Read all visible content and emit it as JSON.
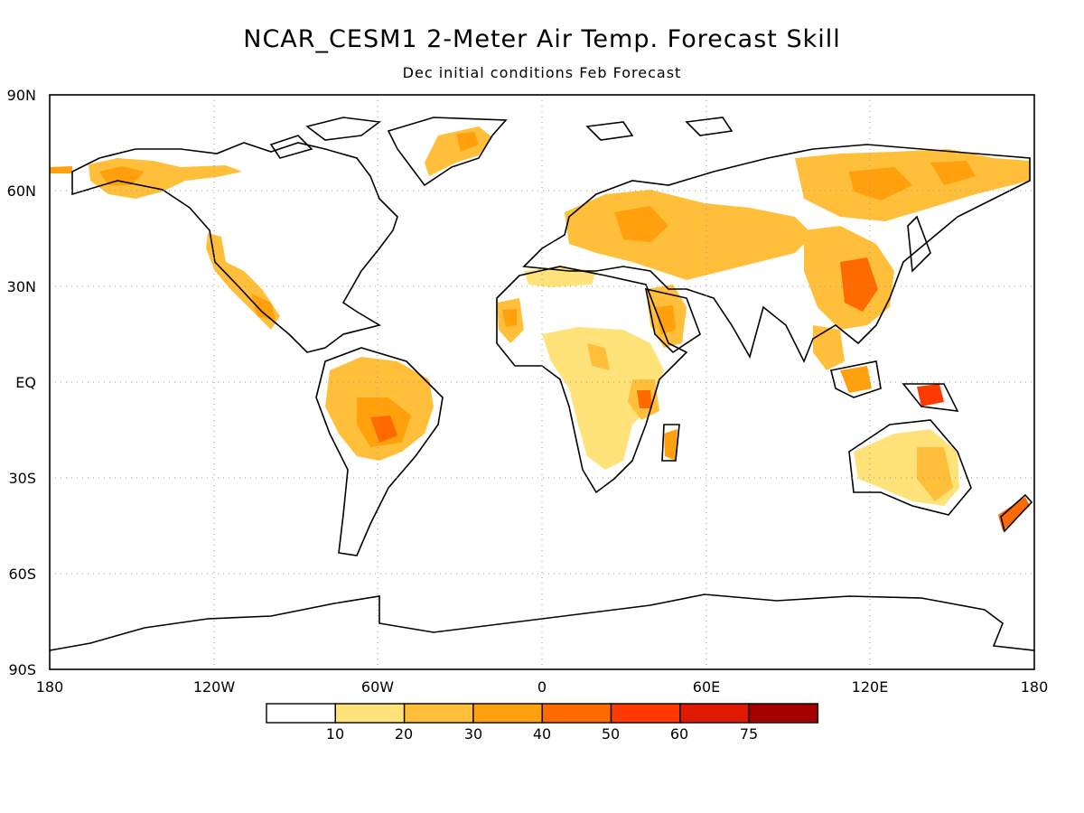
{
  "title": "NCAR_CESM1 2-Meter Air Temp. Forecast Skill",
  "subtitle": "Dec initial conditions  Feb Forecast",
  "map": {
    "projection": "equirectangular",
    "lon_range": [
      -180,
      180
    ],
    "lat_range": [
      -90,
      90
    ],
    "grid": "dotted",
    "lat_ticks": [
      {
        "lat": 90,
        "label": "90N"
      },
      {
        "lat": 60,
        "label": "60N"
      },
      {
        "lat": 30,
        "label": "30N"
      },
      {
        "lat": 0,
        "label": "EQ"
      },
      {
        "lat": -30,
        "label": "30S"
      },
      {
        "lat": -60,
        "label": "60S"
      },
      {
        "lat": -90,
        "label": "90S"
      }
    ],
    "lon_ticks": [
      {
        "lon": -180,
        "label": "180"
      },
      {
        "lon": -120,
        "label": "120W"
      },
      {
        "lon": -60,
        "label": "60W"
      },
      {
        "lon": 0,
        "label": "0"
      },
      {
        "lon": 60,
        "label": "60E"
      },
      {
        "lon": 120,
        "label": "120E"
      },
      {
        "lon": 180,
        "label": "180"
      }
    ]
  },
  "colorbar": {
    "colors": [
      "#ffffff",
      "#ffe27a",
      "#ffbf3a",
      "#ffa00c",
      "#ff6a00",
      "#ff3a00",
      "#e01a00",
      "#a50000"
    ],
    "labels": [
      "10",
      "20",
      "30",
      "40",
      "50",
      "60",
      "75"
    ]
  }
}
